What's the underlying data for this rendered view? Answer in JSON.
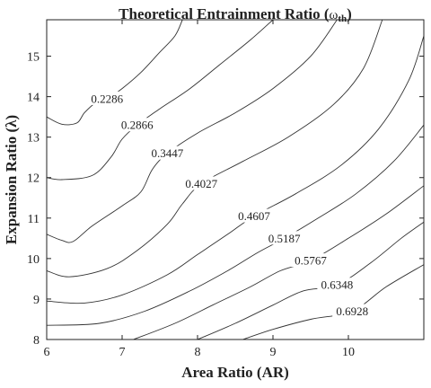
{
  "chart_data": {
    "type": "contour",
    "title_main": "Theoretical Entrainment Ratio (",
    "title_symbol": "ω",
    "title_subscript": "th",
    "title_close": ")",
    "xlabel": "Area Ratio (AR)",
    "ylabel": "Expansion Ratio (λ)",
    "xlim": [
      6,
      11
    ],
    "ylim": [
      8,
      15.9
    ],
    "xticks": [
      "6",
      "7",
      "8",
      "9",
      "10"
    ],
    "yticks": [
      "8",
      "9",
      "10",
      "11",
      "12",
      "13",
      "14",
      "15"
    ],
    "grid": false,
    "levels": [
      {
        "label": "0.2286",
        "label_at": [
          6.8,
          13.95
        ],
        "points": [
          [
            6,
            13.5
          ],
          [
            6.2,
            13.32
          ],
          [
            6.4,
            13.35
          ],
          [
            6.5,
            13.6
          ],
          [
            6.65,
            13.85
          ],
          [
            6.8,
            13.95
          ],
          [
            7.0,
            14.2
          ],
          [
            7.25,
            14.6
          ],
          [
            7.5,
            15.1
          ],
          [
            7.7,
            15.5
          ],
          [
            7.8,
            15.9
          ]
        ]
      },
      {
        "label": "0.2866",
        "label_at": [
          7.2,
          13.3
        ],
        "points": [
          [
            6,
            12.0
          ],
          [
            6.2,
            11.95
          ],
          [
            6.6,
            12.05
          ],
          [
            6.85,
            12.5
          ],
          [
            7.0,
            12.95
          ],
          [
            7.2,
            13.3
          ],
          [
            7.5,
            13.7
          ],
          [
            7.9,
            14.2
          ],
          [
            8.3,
            14.8
          ],
          [
            8.7,
            15.4
          ],
          [
            9.0,
            15.9
          ]
        ]
      },
      {
        "label": "0.3447",
        "label_at": [
          7.6,
          12.6
        ],
        "points": [
          [
            6,
            10.6
          ],
          [
            6.2,
            10.45
          ],
          [
            6.35,
            10.42
          ],
          [
            6.6,
            10.8
          ],
          [
            7.0,
            11.3
          ],
          [
            7.25,
            11.65
          ],
          [
            7.4,
            12.2
          ],
          [
            7.6,
            12.6
          ],
          [
            8.0,
            13.1
          ],
          [
            8.5,
            13.6
          ],
          [
            9.0,
            14.2
          ],
          [
            9.5,
            15.0
          ],
          [
            9.85,
            15.9
          ]
        ]
      },
      {
        "label": "0.4027",
        "label_at": [
          8.05,
          11.85
        ],
        "points": [
          [
            6,
            9.7
          ],
          [
            6.3,
            9.55
          ],
          [
            6.8,
            9.75
          ],
          [
            7.2,
            10.2
          ],
          [
            7.6,
            10.85
          ],
          [
            7.8,
            11.35
          ],
          [
            8.05,
            11.85
          ],
          [
            8.6,
            12.4
          ],
          [
            9.2,
            13.0
          ],
          [
            9.8,
            13.8
          ],
          [
            10.2,
            14.7
          ],
          [
            10.45,
            15.9
          ]
        ]
      },
      {
        "label": "0.4607",
        "label_at": [
          8.75,
          11.05
        ],
        "points": [
          [
            6,
            8.95
          ],
          [
            6.5,
            8.9
          ],
          [
            7.0,
            9.1
          ],
          [
            7.6,
            9.6
          ],
          [
            8.0,
            10.1
          ],
          [
            8.4,
            10.6
          ],
          [
            8.75,
            11.05
          ],
          [
            9.3,
            11.6
          ],
          [
            9.9,
            12.3
          ],
          [
            10.4,
            13.2
          ],
          [
            10.8,
            14.4
          ],
          [
            11.0,
            15.5
          ]
        ]
      },
      {
        "label": "0.5187",
        "label_at": [
          9.15,
          10.5
        ],
        "points": [
          [
            6,
            8.35
          ],
          [
            6.7,
            8.4
          ],
          [
            7.3,
            8.7
          ],
          [
            7.9,
            9.2
          ],
          [
            8.4,
            9.7
          ],
          [
            8.8,
            10.15
          ],
          [
            9.15,
            10.5
          ],
          [
            9.6,
            11.0
          ],
          [
            10.1,
            11.6
          ],
          [
            10.6,
            12.4
          ],
          [
            11.0,
            13.3
          ]
        ]
      },
      {
        "label": "0.5767",
        "label_at": [
          9.5,
          9.95
        ],
        "points": [
          [
            7.15,
            8.0
          ],
          [
            7.7,
            8.4
          ],
          [
            8.2,
            8.85
          ],
          [
            8.7,
            9.3
          ],
          [
            9.1,
            9.7
          ],
          [
            9.5,
            9.95
          ],
          [
            10.0,
            10.5
          ],
          [
            10.5,
            11.1
          ],
          [
            11.0,
            11.8
          ]
        ]
      },
      {
        "label": "0.6348",
        "label_at": [
          9.85,
          9.35
        ],
        "points": [
          [
            8.0,
            8.0
          ],
          [
            8.5,
            8.4
          ],
          [
            9.0,
            8.85
          ],
          [
            9.4,
            9.2
          ],
          [
            9.85,
            9.35
          ],
          [
            10.3,
            9.9
          ],
          [
            10.7,
            10.5
          ],
          [
            11.0,
            10.9
          ]
        ]
      },
      {
        "label": "0.6928",
        "label_at": [
          10.05,
          8.7
        ],
        "points": [
          [
            8.6,
            8.0
          ],
          [
            9.0,
            8.25
          ],
          [
            9.5,
            8.5
          ],
          [
            10.05,
            8.7
          ],
          [
            10.5,
            9.3
          ],
          [
            11.0,
            9.85
          ]
        ]
      }
    ]
  }
}
